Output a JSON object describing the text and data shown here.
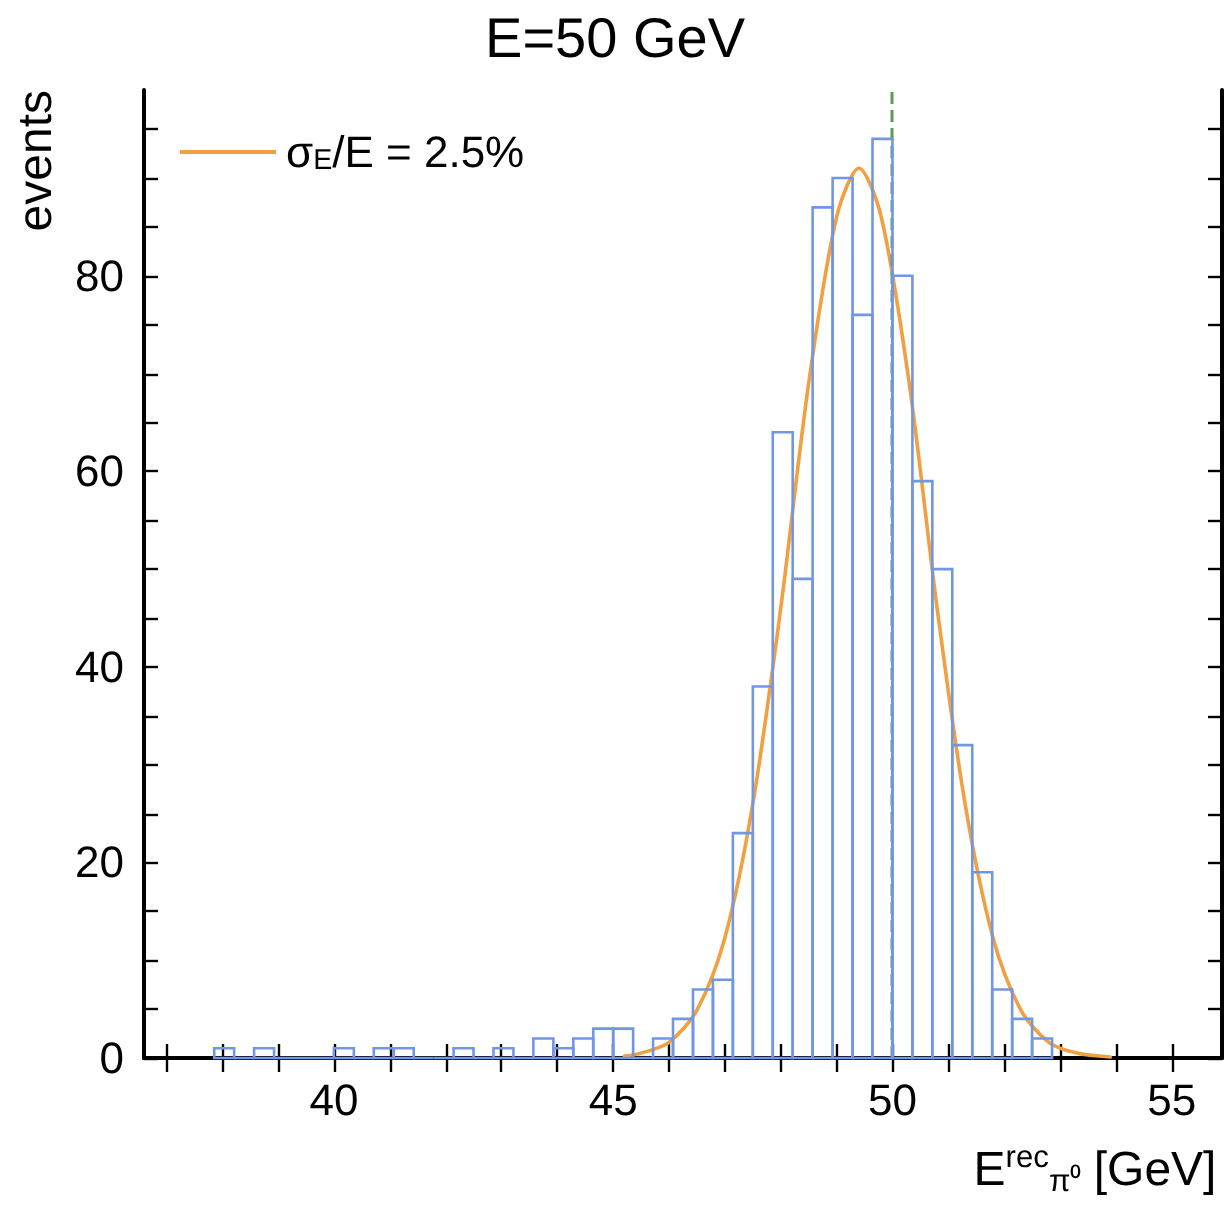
{
  "chart_data": {
    "type": "histogram",
    "title": "E=50 GeV",
    "xlabel": "E$^{rec}$$_{π⁰}$ [GeV]",
    "ylabel": "events",
    "bins": [
      37.857,
      38.214,
      38.571,
      38.929,
      39.286,
      39.643,
      40,
      40.357,
      40.714,
      41.071,
      41.429,
      41.786,
      42.143,
      42.5,
      42.857,
      43.214,
      43.571,
      43.929,
      44.286,
      44.643,
      45,
      45.357,
      45.714,
      46.071,
      46.429,
      46.786,
      47.143,
      47.5,
      47.857,
      48.214,
      48.571,
      48.929,
      49.286,
      49.643,
      50,
      50.357,
      50.714,
      51.071,
      51.429,
      51.786,
      52.143,
      52.5,
      52.857
    ],
    "values": [
      1,
      0,
      1,
      0,
      0,
      0,
      1,
      0,
      1,
      1,
      0,
      0,
      1,
      0,
      1,
      0,
      2,
      1,
      2,
      3,
      3,
      0,
      2,
      4,
      7,
      8,
      23,
      38,
      64,
      49,
      87,
      90,
      76,
      94,
      80,
      59,
      50,
      32,
      19,
      7,
      4,
      2
    ],
    "color": "#7096e4",
    "series": [
      {
        "type": "line",
        "name": "σ$_{E}$/E = 2.5%",
        "color": "#f0a040",
        "x": [
          45.2,
          45.5,
          46,
          46.5,
          47,
          47.5,
          48,
          48.5,
          49,
          49.4,
          49.8,
          50.3,
          50.8,
          51.3,
          51.8,
          52.3,
          52.8,
          53.3,
          53.9
        ],
        "values": [
          0.2,
          0.5,
          1.6,
          4.9,
          12.3,
          26,
          46,
          69,
          86,
          91,
          86,
          69,
          46,
          26,
          12.3,
          4.9,
          1.6,
          0.5,
          0.1
        ]
      }
    ],
    "ref_lines": [
      {
        "axis": "x",
        "value": 50,
        "color": "#5a9a5a",
        "line_style": "dashed"
      }
    ],
    "xlim": [
      36.6,
      55.9
    ],
    "xticks": [
      {
        "value": 37,
        "label": null
      },
      {
        "value": 38,
        "label": null
      },
      {
        "value": 39,
        "label": null
      },
      40,
      {
        "value": 41,
        "label": null
      },
      {
        "value": 42,
        "label": null
      },
      {
        "value": 43,
        "label": null
      },
      {
        "value": 44,
        "label": null
      },
      45,
      {
        "value": 46,
        "label": null
      },
      {
        "value": 47,
        "label": null
      },
      {
        "value": 48,
        "label": null
      },
      {
        "value": 49,
        "label": null
      },
      50,
      {
        "value": 51,
        "label": null
      },
      {
        "value": 52,
        "label": null
      },
      {
        "value": 53,
        "label": null
      },
      {
        "value": 54,
        "label": null
      },
      55
    ],
    "ylim": [
      0,
      99
    ],
    "yticks": [
      0,
      {
        "value": 5,
        "label": null
      },
      {
        "value": 10,
        "label": null
      },
      {
        "value": 15,
        "label": null
      },
      20,
      {
        "value": 25,
        "label": null
      },
      {
        "value": 30,
        "label": null
      },
      {
        "value": 35,
        "label": null
      },
      40,
      {
        "value": 45,
        "label": null
      },
      {
        "value": 50,
        "label": null
      },
      {
        "value": 55,
        "label": null
      },
      60,
      {
        "value": 65,
        "label": null
      },
      {
        "value": 70,
        "label": null
      },
      {
        "value": 75,
        "label": null
      },
      80,
      {
        "value": 85,
        "label": null
      },
      {
        "value": 90,
        "label": null
      },
      {
        "value": 95,
        "label": null
      }
    ],
    "legend": "top left",
    "grid": false,
    "marker": "none",
    "line_style": "solid"
  }
}
